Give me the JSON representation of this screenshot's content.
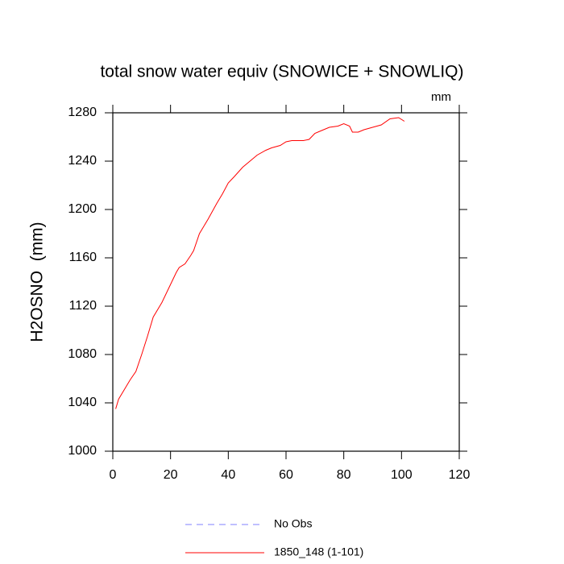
{
  "chart_data": {
    "type": "line",
    "title": "total snow water equiv (SNOWICE + SNOWLIQ)",
    "units": "mm",
    "y_label": "H2OSNO  (mm)",
    "x": [
      1,
      2,
      4,
      6,
      8,
      10,
      12,
      14,
      17,
      20,
      22,
      23,
      25,
      27,
      28,
      30,
      33,
      36,
      38,
      40,
      42,
      45,
      48,
      50,
      53,
      55,
      58,
      60,
      62,
      66,
      68,
      70,
      72,
      75,
      78,
      80,
      82,
      83,
      85,
      87,
      90,
      93,
      96,
      99,
      101
    ],
    "series": [
      {
        "name": "1850_148 (1-101)",
        "color": "#ff0000",
        "values": [
          1035,
          1043,
          1051,
          1059,
          1066,
          1080,
          1095,
          1111,
          1123,
          1138,
          1148,
          1152,
          1155,
          1162,
          1166,
          1180,
          1192,
          1205,
          1213,
          1222,
          1227,
          1235,
          1241,
          1245,
          1249,
          1251,
          1253,
          1256,
          1257,
          1257,
          1258,
          1263,
          1265,
          1268,
          1269,
          1271,
          1269,
          1264,
          1264,
          1266,
          1268,
          1270,
          1275,
          1276,
          1273
        ]
      }
    ],
    "extra_legend": {
      "name": "No Obs",
      "color": "#8080ff",
      "dashed": true
    },
    "xlim": [
      0,
      120
    ],
    "xticks": [
      0,
      20,
      40,
      60,
      80,
      100,
      120
    ],
    "ylim": [
      1000,
      1280
    ],
    "yticks": [
      1000,
      1040,
      1080,
      1120,
      1160,
      1200,
      1240,
      1280
    ]
  }
}
